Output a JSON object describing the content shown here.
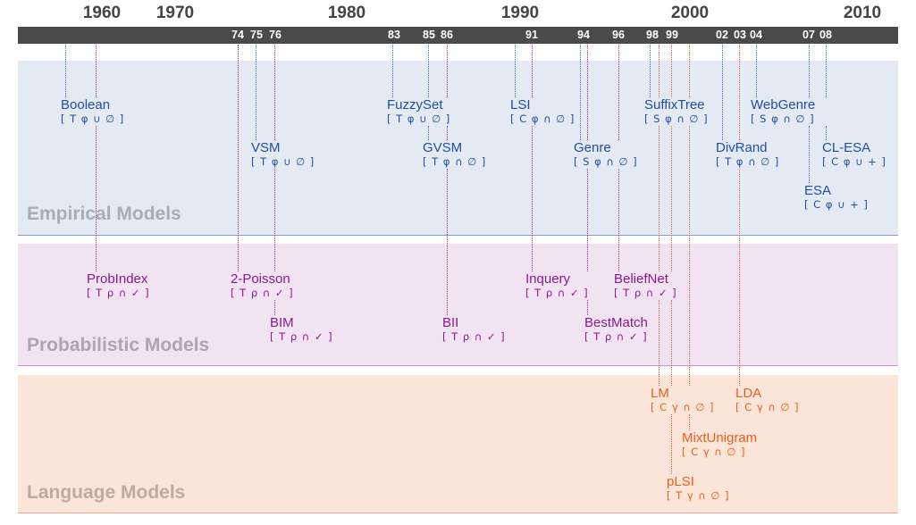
{
  "colors": {
    "empirical": "#1f4e9c",
    "probabilistic": "#8a1a8a",
    "language": "#e8601c",
    "axis_bar": "#4a4a4a",
    "decade_text": "#444444"
  },
  "timeline": {
    "decades": [
      "1960",
      "1970",
      "1980",
      "1990",
      "2000",
      "2010"
    ],
    "years": [
      "74",
      "75",
      "76",
      "83",
      "85",
      "86",
      "91",
      "94",
      "96",
      "98",
      "99",
      "02",
      "03",
      "04",
      "07",
      "08"
    ]
  },
  "bands": [
    {
      "id": "empirical",
      "title": "Empirical Models"
    },
    {
      "id": "probabilistic",
      "title": "Probabilistic Models"
    },
    {
      "id": "language",
      "title": "Language Models"
    }
  ],
  "models": [
    {
      "name": "Boolean",
      "code": "[ T φ ∪ ∅ ]",
      "family": "empirical",
      "year": "1957"
    },
    {
      "name": "VSM",
      "code": "[ T φ ∪ ∅ ]",
      "family": "empirical",
      "year": "1975"
    },
    {
      "name": "FuzzySet",
      "code": "[ T φ ∪ ∅ ]",
      "family": "empirical",
      "year": "1983"
    },
    {
      "name": "GVSM",
      "code": "[ T φ ∩ ∅ ]",
      "family": "empirical",
      "year": "1985"
    },
    {
      "name": "LSI",
      "code": "[ C φ ∩ ∅ ]",
      "family": "empirical",
      "year": "1990"
    },
    {
      "name": "Genre",
      "code": "[ S φ ∩ ∅ ]",
      "family": "empirical",
      "year": "1994"
    },
    {
      "name": "SuffixTree",
      "code": "[ S φ ∩ ∅ ]",
      "family": "empirical",
      "year": "1998"
    },
    {
      "name": "DivRand",
      "code": "[ T φ ∩ ∅ ]",
      "family": "empirical",
      "year": "2002"
    },
    {
      "name": "WebGenre",
      "code": "[ S φ ∩ ∅ ]",
      "family": "empirical",
      "year": "2004"
    },
    {
      "name": "ESA",
      "code": "[ C φ ∪ + ]",
      "family": "empirical",
      "year": "2007"
    },
    {
      "name": "CL-ESA",
      "code": "[ C φ ∪ + ]",
      "family": "empirical",
      "year": "2008"
    },
    {
      "name": "ProbIndex",
      "code": "[ T ρ ∩ ✓ ]",
      "family": "probabilistic",
      "year": "1960"
    },
    {
      "name": "2-Poisson",
      "code": "[ T ρ ∩ ✓ ]",
      "family": "probabilistic",
      "year": "1974"
    },
    {
      "name": "BIM",
      "code": "[ T ρ ∩ ✓ ]",
      "family": "probabilistic",
      "year": "1976"
    },
    {
      "name": "BII",
      "code": "[ T ρ ∩ ✓ ]",
      "family": "probabilistic",
      "year": "1986"
    },
    {
      "name": "Inquery",
      "code": "[ T ρ ∩ ✓ ]",
      "family": "probabilistic",
      "year": "1991"
    },
    {
      "name": "BestMatch",
      "code": "[ T ρ ∩ ✓ ]",
      "family": "probabilistic",
      "year": "1994"
    },
    {
      "name": "BeliefNet",
      "code": "[ T ρ ∩ ✓ ]",
      "family": "probabilistic",
      "year": "1996"
    },
    {
      "name": "LM",
      "code": "[ C γ ∩ ∅ ]",
      "family": "language",
      "year": "1998"
    },
    {
      "name": "pLSI",
      "code": "[ T γ ∩ ∅ ]",
      "family": "language",
      "year": "1999"
    },
    {
      "name": "MixtUnigram",
      "code": "[ C γ ∩ ∅ ]",
      "family": "language",
      "year": "2000"
    },
    {
      "name": "LDA",
      "code": "[ C γ ∩ ∅ ]",
      "family": "language",
      "year": "2003"
    }
  ]
}
